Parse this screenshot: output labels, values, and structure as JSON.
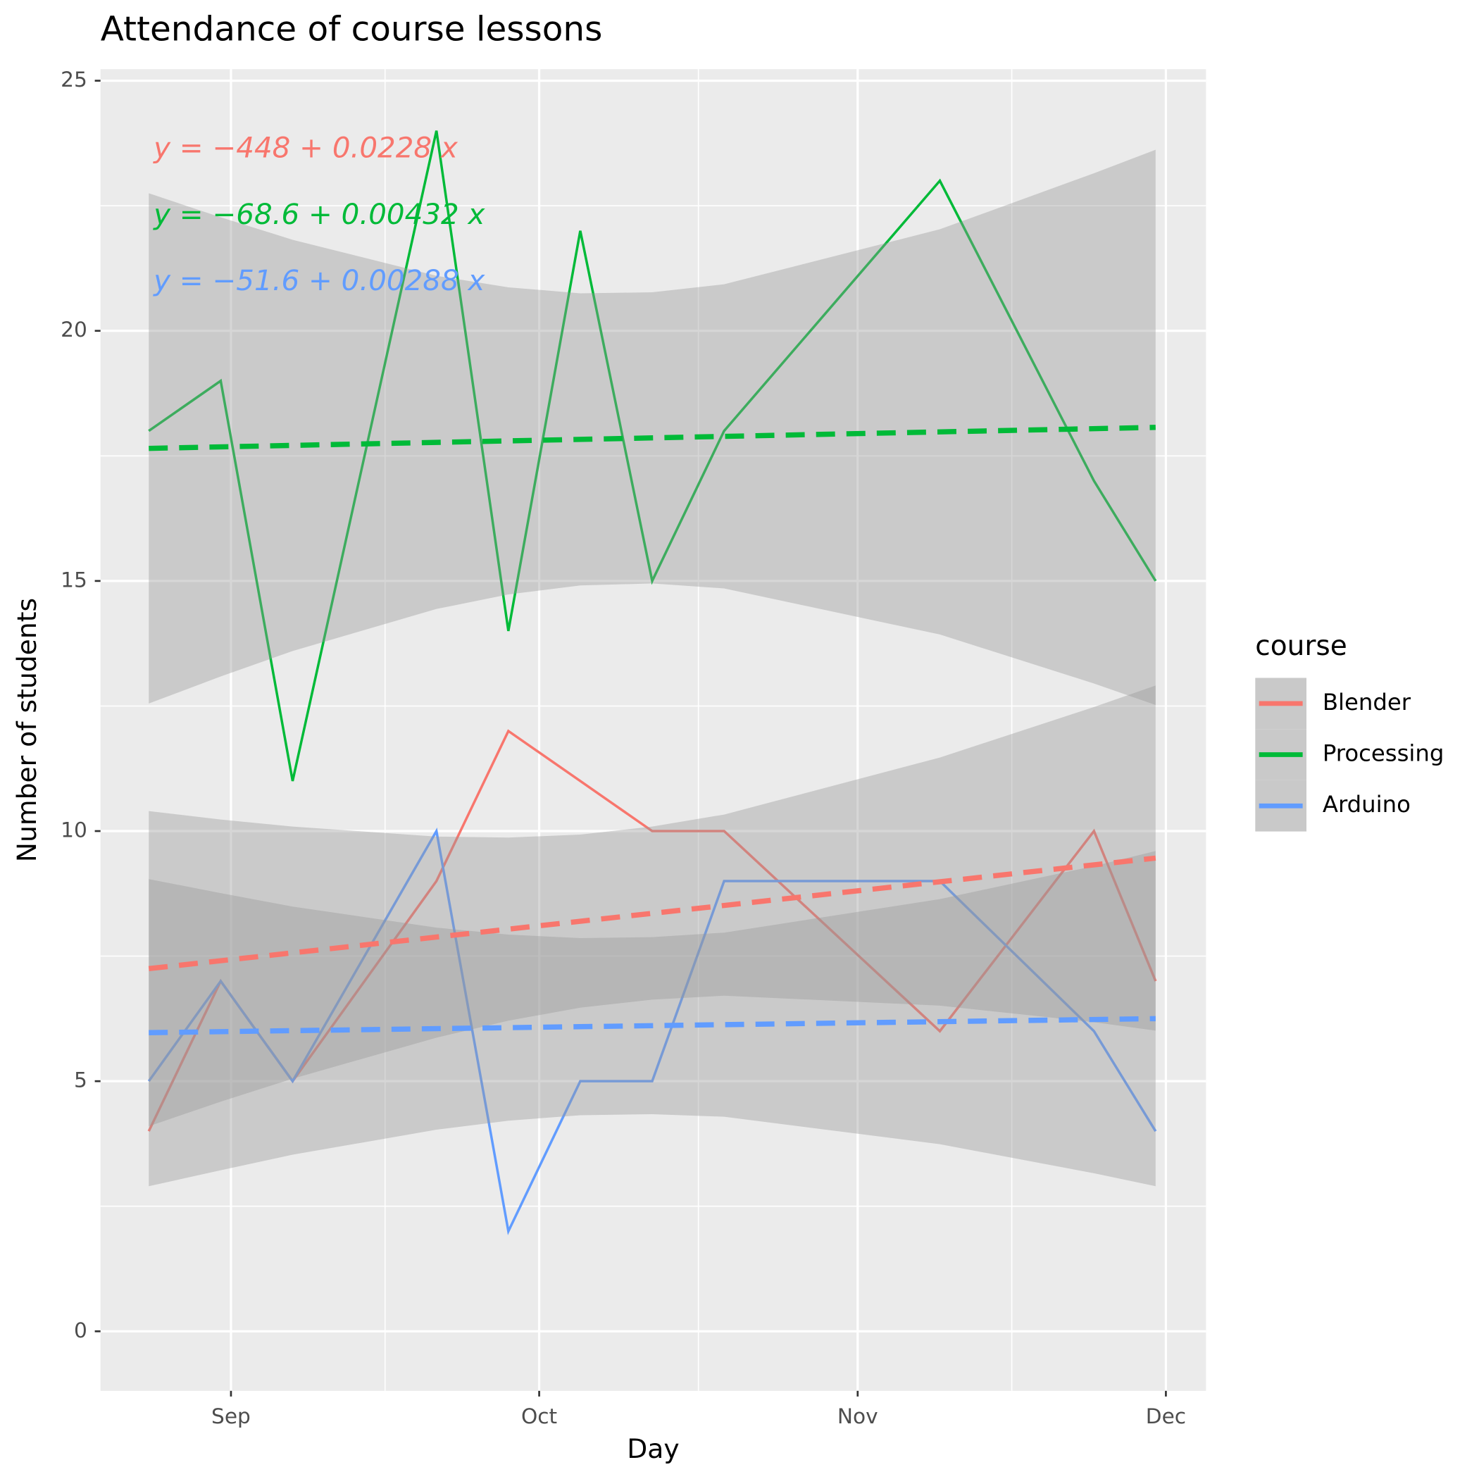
{
  "chart_data": {
    "type": "line",
    "title": "Attendance of course lessons",
    "x_label": "Day",
    "y_label": "Number of students",
    "legend_title": "course",
    "legend": "right",
    "grid": true,
    "minor_grid": true,
    "band_color": "#999999",
    "x": [
      19959,
      19966,
      19973,
      19987,
      19994,
      20001,
      20008,
      20015,
      20036,
      20051,
      20057
    ],
    "xlim": [
      19954.3,
      20061.9
    ],
    "xticks": [
      {
        "value": 19967,
        "label": "Sep"
      },
      {
        "value": 19997,
        "label": "Oct"
      },
      {
        "value": 20028,
        "label": "Nov"
      },
      {
        "value": 20058,
        "label": "Dec"
      }
    ],
    "ylim": [
      -1.19,
      25.23
    ],
    "yticks": [
      0,
      5,
      10,
      15,
      20,
      25
    ],
    "series": [
      {
        "name": "Blender",
        "color": "#F8766D",
        "values": [
          4,
          7,
          5,
          9,
          12,
          11,
          10,
          10,
          6,
          10,
          7
        ],
        "equation": "y = −448 + 0.0228 x",
        "trend": [
          7.25,
          9.46
        ],
        "lower": [
          4.1,
          4.59,
          5.05,
          5.87,
          6.21,
          6.47,
          6.63,
          6.71,
          6.51,
          6.18,
          6.01
        ],
        "upper": [
          10.4,
          10.23,
          10.09,
          9.89,
          9.87,
          9.93,
          10.09,
          10.33,
          11.47,
          12.48,
          12.91
        ]
      },
      {
        "name": "Processing",
        "color": "#00BA38",
        "values": [
          18,
          19,
          11,
          24,
          14,
          22,
          15,
          18,
          23,
          17,
          15
        ],
        "equation": "y = −68.6 + 0.00432 x",
        "trend": [
          17.65,
          18.07
        ],
        "lower": [
          12.55,
          13.09,
          13.6,
          14.44,
          14.73,
          14.91,
          14.95,
          14.85,
          13.93,
          12.95,
          12.52
        ],
        "upper": [
          22.75,
          22.27,
          21.82,
          21.1,
          20.87,
          20.75,
          20.77,
          20.93,
          22.03,
          23.15,
          23.62
        ]
      },
      {
        "name": "Arduino",
        "color": "#619CFF",
        "values": [
          5,
          7,
          5,
          10,
          2,
          5,
          5,
          9,
          9,
          6,
          4
        ],
        "equation": "y = −51.6 + 0.00288 x",
        "trend": [
          5.97,
          6.25
        ],
        "lower": [
          2.9,
          3.22,
          3.53,
          4.03,
          4.21,
          4.32,
          4.34,
          4.29,
          3.74,
          3.16,
          2.9
        ],
        "upper": [
          9.04,
          8.76,
          8.49,
          8.07,
          7.93,
          7.86,
          7.88,
          7.97,
          8.64,
          9.3,
          9.6
        ]
      }
    ]
  }
}
